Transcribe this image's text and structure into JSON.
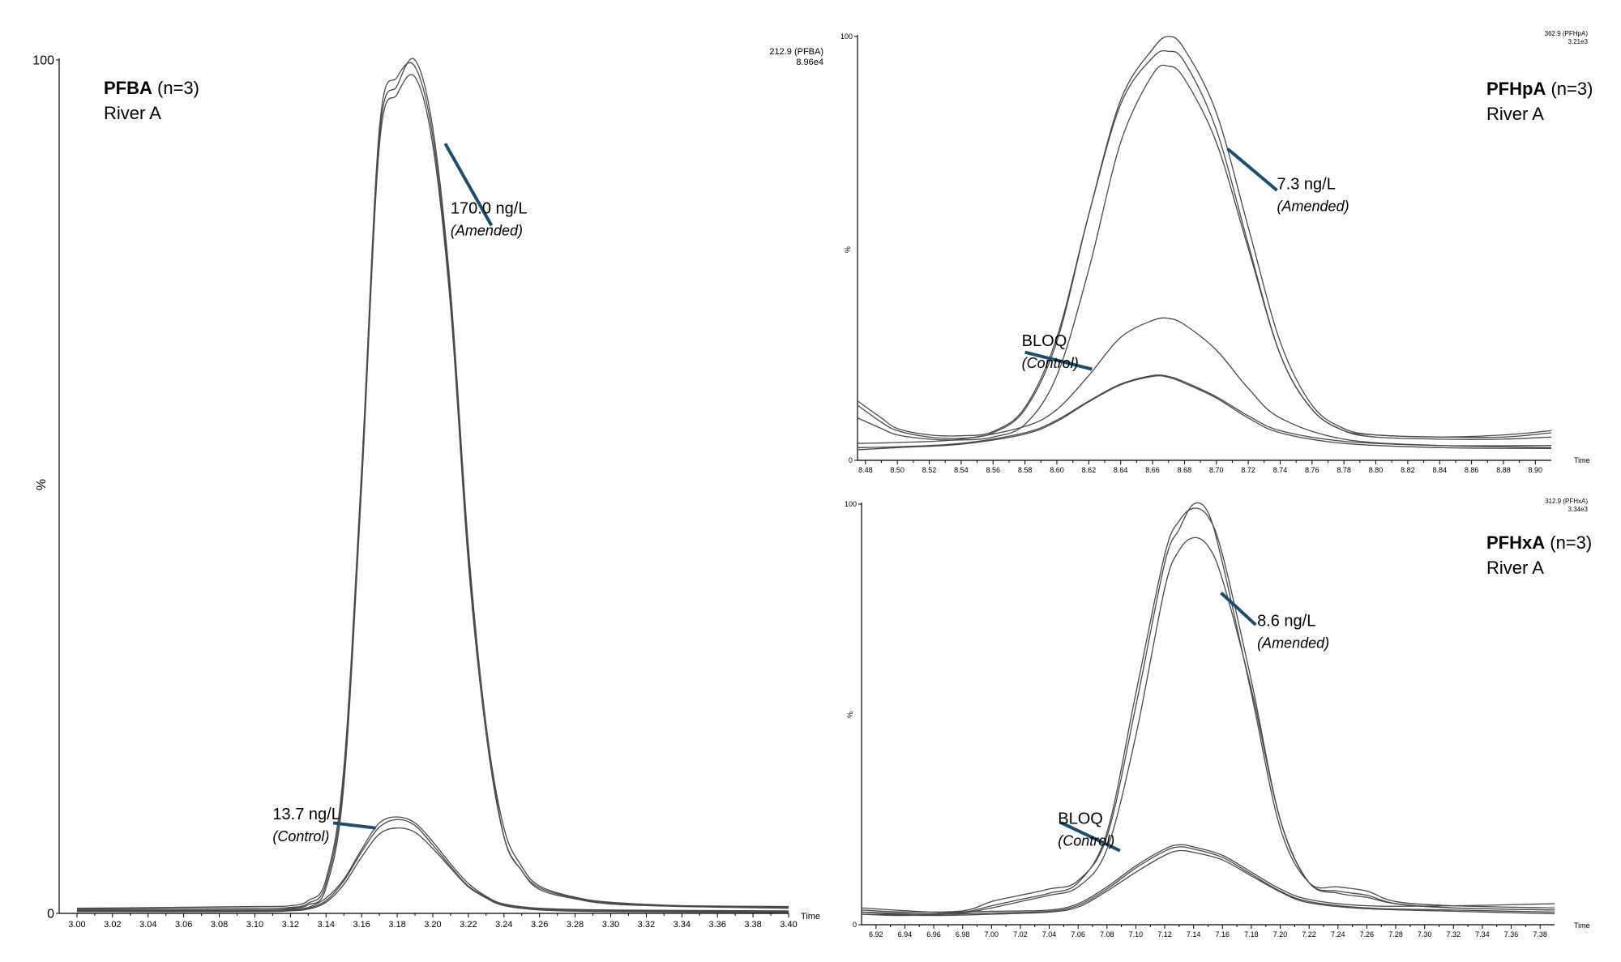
{
  "chart_data": [
    {
      "type": "line",
      "id": "pfba",
      "title": {
        "compound": "PFBA",
        "n": " (n=3)",
        "site": "River A"
      },
      "trace_info": {
        "mass": "212.9 (PFBA)",
        "intensity": "8.96e4"
      },
      "xlabel": "Time",
      "ylabel": "%",
      "xlim": [
        2.99,
        3.4
      ],
      "ylim": [
        0,
        100
      ],
      "xticks": [
        "3.00",
        "3.02",
        "3.04",
        "3.06",
        "3.08",
        "3.10",
        "3.12",
        "3.14",
        "3.16",
        "3.18",
        "3.20",
        "3.22",
        "3.24",
        "3.26",
        "3.28",
        "3.30",
        "3.32",
        "3.34",
        "3.36",
        "3.38",
        "3.40"
      ],
      "yticks": [
        "100",
        "0"
      ],
      "annotations": [
        {
          "value": "170.0 ng/L",
          "group": "(Amended)",
          "text_at": [
            3.21,
            82
          ],
          "line": [
            [
              3.207,
              90.2
            ],
            [
              3.233,
              80.6
            ]
          ]
        },
        {
          "value": "13.7 ng/L",
          "group": "(Control)",
          "text_at": [
            3.11,
            11
          ],
          "line": [
            [
              3.144,
              10.6
            ],
            [
              3.168,
              10.0
            ]
          ]
        }
      ],
      "series": [
        {
          "group": "Amended",
          "x": [
            3.0,
            3.1,
            3.12,
            3.13,
            3.14,
            3.15,
            3.16,
            3.17,
            3.18,
            3.19,
            3.2,
            3.21,
            3.22,
            3.23,
            3.24,
            3.25,
            3.26,
            3.28,
            3.3,
            3.34,
            3.4
          ],
          "y": [
            0.6,
            0.8,
            0.9,
            1.5,
            4,
            17,
            52,
            92,
            98,
            99.2,
            91,
            72,
            42,
            22,
            9,
            5,
            3,
            1.8,
            1.2,
            0.9,
            0.8
          ]
        },
        {
          "group": "Amended",
          "x": [
            3.0,
            3.1,
            3.12,
            3.13,
            3.14,
            3.15,
            3.16,
            3.17,
            3.18,
            3.19,
            3.2,
            3.21,
            3.22,
            3.23,
            3.24,
            3.25,
            3.26,
            3.28,
            3.3,
            3.34,
            3.4
          ],
          "y": [
            0.5,
            0.6,
            0.7,
            1.2,
            3.5,
            16,
            51,
            91,
            97,
            100,
            92,
            73,
            43,
            22,
            10,
            5.5,
            3.2,
            1.9,
            1.3,
            0.9,
            0.7
          ]
        },
        {
          "group": "Amended",
          "x": [
            3.0,
            3.1,
            3.12,
            3.13,
            3.14,
            3.15,
            3.16,
            3.17,
            3.18,
            3.19,
            3.2,
            3.21,
            3.22,
            3.23,
            3.24,
            3.25,
            3.26,
            3.28,
            3.3,
            3.34,
            3.4
          ],
          "y": [
            0.3,
            0.4,
            0.6,
            1.0,
            3.0,
            15,
            50,
            90,
            96,
            98,
            90,
            71,
            41,
            21,
            9,
            5,
            2.8,
            1.7,
            1.1,
            0.8,
            0.6
          ]
        },
        {
          "group": "Control",
          "x": [
            3.0,
            3.1,
            3.12,
            3.13,
            3.14,
            3.15,
            3.16,
            3.17,
            3.18,
            3.19,
            3.2,
            3.21,
            3.22,
            3.23,
            3.24,
            3.26,
            3.3,
            3.4
          ],
          "y": [
            0.4,
            0.4,
            0.5,
            0.7,
            1.8,
            4,
            7.5,
            10.6,
            11.3,
            10.6,
            8.4,
            5.8,
            3.5,
            2.0,
            1.1,
            0.6,
            0.4,
            0.3
          ]
        },
        {
          "group": "Control",
          "x": [
            3.0,
            3.1,
            3.12,
            3.13,
            3.14,
            3.15,
            3.16,
            3.17,
            3.18,
            3.19,
            3.2,
            3.21,
            3.22,
            3.23,
            3.24,
            3.26,
            3.3,
            3.4
          ],
          "y": [
            0.3,
            0.3,
            0.4,
            0.6,
            1.5,
            3.8,
            7.2,
            10.1,
            11.0,
            10.3,
            8.0,
            5.5,
            3.2,
            1.9,
            1.0,
            0.5,
            0.3,
            0.2
          ]
        },
        {
          "group": "Control",
          "x": [
            3.0,
            3.1,
            3.12,
            3.13,
            3.14,
            3.15,
            3.16,
            3.17,
            3.18,
            3.19,
            3.2,
            3.21,
            3.22,
            3.23,
            3.24,
            3.26,
            3.3,
            3.4
          ],
          "y": [
            0.2,
            0.2,
            0.3,
            0.5,
            1.3,
            3.4,
            6.6,
            9.3,
            10.0,
            9.5,
            7.6,
            5.3,
            3.1,
            1.8,
            0.9,
            0.4,
            0.2,
            0.1
          ]
        }
      ]
    },
    {
      "type": "line",
      "id": "pfhpa",
      "title": {
        "compound": "PFHpA",
        "n": " (n=3)",
        "site": "River A"
      },
      "trace_info": {
        "mass": "362.9 (PFHpA)",
        "intensity": "3.21e3"
      },
      "xlabel": "Time",
      "ylabel": "%",
      "xlim": [
        8.475,
        8.91
      ],
      "ylim": [
        0,
        100
      ],
      "xticks": [
        "8.48",
        "8.50",
        "8.52",
        "8.54",
        "8.56",
        "8.58",
        "8.60",
        "8.62",
        "8.64",
        "8.66",
        "8.68",
        "8.70",
        "8.72",
        "8.74",
        "8.76",
        "8.78",
        "8.80",
        "8.82",
        "8.84",
        "8.86",
        "8.88",
        "8.90"
      ],
      "yticks": [
        "100",
        "%",
        "0"
      ],
      "annotations": [
        {
          "value": "7.3 ng/L",
          "group": "(Amended)",
          "text_at": [
            8.738,
            64
          ],
          "line": [
            [
              8.707,
              73.5
            ],
            [
              8.738,
              63.7
            ]
          ]
        },
        {
          "value": "BLOQ",
          "group": "(Control)",
          "text_at": [
            8.578,
            27
          ],
          "line": [
            [
              8.58,
              25.5
            ],
            [
              8.622,
              21.5
            ]
          ]
        }
      ],
      "series": [
        {
          "group": "Amended",
          "x": [
            8.475,
            8.49,
            8.5,
            8.52,
            8.54,
            8.56,
            8.58,
            8.6,
            8.62,
            8.64,
            8.66,
            8.67,
            8.68,
            8.7,
            8.72,
            8.74,
            8.76,
            8.78,
            8.8,
            8.84,
            8.88,
            8.91
          ],
          "y": [
            13,
            9,
            7,
            5.5,
            5.2,
            6.5,
            12,
            28,
            58,
            85,
            97,
            100,
            97,
            82,
            55,
            28,
            13,
            7.5,
            6,
            5.5,
            5.5,
            6.5
          ]
        },
        {
          "group": "Amended",
          "x": [
            8.475,
            8.49,
            8.5,
            8.52,
            8.54,
            8.56,
            8.58,
            8.6,
            8.62,
            8.64,
            8.66,
            8.67,
            8.68,
            8.7,
            8.72,
            8.74,
            8.76,
            8.78,
            8.8,
            8.84,
            8.88,
            8.91
          ],
          "y": [
            14,
            10,
            7.5,
            6,
            5.8,
            6.8,
            12.5,
            29,
            58,
            84,
            95,
            96.5,
            94,
            78,
            51,
            25,
            12,
            7,
            6,
            5.5,
            6,
            7
          ]
        },
        {
          "group": "Amended",
          "x": [
            8.475,
            8.49,
            8.5,
            8.52,
            8.54,
            8.56,
            8.58,
            8.6,
            8.62,
            8.64,
            8.66,
            8.67,
            8.68,
            8.7,
            8.72,
            8.74,
            8.76,
            8.78,
            8.8,
            8.84,
            8.88,
            8.91
          ],
          "y": [
            10,
            7.5,
            6,
            5,
            4.8,
            5.5,
            8.5,
            20,
            45,
            75,
            91,
            93,
            90,
            75,
            50,
            25,
            12,
            7,
            5.5,
            5,
            5,
            5.5
          ]
        },
        {
          "group": "Control",
          "x": [
            8.475,
            8.5,
            8.54,
            8.58,
            8.6,
            8.62,
            8.64,
            8.66,
            8.67,
            8.68,
            8.7,
            8.72,
            8.74,
            8.78,
            8.84,
            8.91
          ],
          "y": [
            4,
            4.2,
            5,
            8,
            12,
            20,
            29,
            33,
            33.5,
            32,
            26,
            17,
            10,
            5,
            3.5,
            3
          ]
        },
        {
          "group": "Control",
          "x": [
            8.475,
            8.5,
            8.54,
            8.58,
            8.6,
            8.62,
            8.64,
            8.66,
            8.67,
            8.68,
            8.7,
            8.72,
            8.74,
            8.78,
            8.84,
            8.91
          ],
          "y": [
            3,
            3.2,
            4,
            6.5,
            9.5,
            14,
            18,
            20,
            19.8,
            18.5,
            15,
            10.5,
            7,
            4.5,
            3.5,
            3.5
          ]
        },
        {
          "group": "Control",
          "x": [
            8.475,
            8.5,
            8.54,
            8.58,
            8.6,
            8.62,
            8.64,
            8.66,
            8.67,
            8.68,
            8.7,
            8.72,
            8.74,
            8.78,
            8.84,
            8.91
          ],
          "y": [
            2.5,
            3,
            3.8,
            6.2,
            9.2,
            13.8,
            17.8,
            19.8,
            19.6,
            18.2,
            14.7,
            10,
            6.5,
            4,
            3,
            2.8
          ]
        }
      ]
    },
    {
      "type": "line",
      "id": "pfhxa",
      "title": {
        "compound": "PFHxA",
        "n": " (n=3)",
        "site": "River A"
      },
      "trace_info": {
        "mass": "312.9 (PFHxA)",
        "intensity": "3.34e3"
      },
      "xlabel": "Time",
      "ylabel": "%",
      "xlim": [
        6.91,
        7.39
      ],
      "ylim": [
        0,
        100
      ],
      "xticks": [
        "6.92",
        "6.94",
        "6.96",
        "6.98",
        "7.00",
        "7.02",
        "7.04",
        "7.06",
        "7.08",
        "7.10",
        "7.12",
        "7.14",
        "7.16",
        "7.18",
        "7.20",
        "7.22",
        "7.24",
        "7.26",
        "7.28",
        "7.30",
        "7.32",
        "7.34",
        "7.36",
        "7.38"
      ],
      "yticks": [
        "100",
        "%",
        "0"
      ],
      "annotations": [
        {
          "value": "8.6 ng/L",
          "group": "(Amended)",
          "text_at": [
            7.184,
            71
          ],
          "line": [
            [
              7.159,
              78.9
            ],
            [
              7.183,
              71.3
            ]
          ]
        },
        {
          "value": "BLOQ",
          "group": "(Control)",
          "text_at": [
            7.046,
            24
          ],
          "line": [
            [
              7.048,
              24.3
            ],
            [
              7.089,
              17.6
            ]
          ]
        }
      ],
      "series": [
        {
          "group": "Amended",
          "x": [
            6.91,
            6.94,
            6.98,
            7.0,
            7.02,
            7.04,
            7.06,
            7.08,
            7.1,
            7.12,
            7.13,
            7.14,
            7.15,
            7.16,
            7.18,
            7.2,
            7.22,
            7.24,
            7.26,
            7.28,
            7.32,
            7.39
          ],
          "y": [
            3,
            2.5,
            3,
            4.5,
            6,
            7.5,
            10,
            22,
            55,
            88,
            96,
            99,
            97,
            88,
            58,
            25,
            10,
            8,
            7,
            5,
            4,
            3.5
          ]
        },
        {
          "group": "Amended",
          "x": [
            6.91,
            6.94,
            6.98,
            7.0,
            7.02,
            7.04,
            7.06,
            7.08,
            7.1,
            7.12,
            7.13,
            7.14,
            7.15,
            7.16,
            7.18,
            7.2,
            7.22,
            7.24,
            7.26,
            7.28,
            7.32,
            7.39
          ],
          "y": [
            3.5,
            3,
            3.3,
            5.5,
            7,
            8.5,
            10.5,
            21,
            52,
            86,
            94,
            100,
            98,
            86,
            55,
            23,
            10,
            9,
            8,
            5.5,
            4.5,
            4
          ]
        },
        {
          "group": "Amended",
          "x": [
            6.91,
            6.94,
            6.98,
            7.0,
            7.02,
            7.04,
            7.06,
            7.08,
            7.1,
            7.12,
            7.13,
            7.14,
            7.15,
            7.16,
            7.18,
            7.2,
            7.22,
            7.24,
            7.26,
            7.28,
            7.32,
            7.39
          ],
          "y": [
            2.5,
            2.2,
            2.8,
            4,
            5.5,
            7,
            9,
            18,
            45,
            80,
            89,
            92,
            90,
            82,
            56,
            25,
            10,
            7.5,
            6.5,
            5,
            4,
            3.5
          ]
        },
        {
          "group": "Control",
          "x": [
            6.91,
            6.96,
            7.0,
            7.04,
            7.06,
            7.08,
            7.1,
            7.12,
            7.13,
            7.14,
            7.16,
            7.18,
            7.2,
            7.22,
            7.26,
            7.32,
            7.39
          ],
          "y": [
            4,
            3,
            3.2,
            3.5,
            5,
            9,
            14,
            18,
            19,
            18.5,
            16.5,
            12.5,
            8.5,
            6,
            4.5,
            4.5,
            5
          ]
        },
        {
          "group": "Control",
          "x": [
            6.91,
            6.96,
            7.0,
            7.04,
            7.06,
            7.08,
            7.1,
            7.12,
            7.13,
            7.14,
            7.16,
            7.18,
            7.2,
            7.22,
            7.26,
            7.32,
            7.39
          ],
          "y": [
            3,
            2.5,
            2.8,
            3.2,
            4.6,
            8.5,
            13.5,
            17.5,
            18.5,
            18,
            16,
            12,
            8,
            5.5,
            4,
            3.5,
            3
          ]
        },
        {
          "group": "Control",
          "x": [
            6.91,
            6.96,
            7.0,
            7.04,
            7.06,
            7.08,
            7.1,
            7.12,
            7.13,
            7.14,
            7.16,
            7.18,
            7.2,
            7.22,
            7.26,
            7.32,
            7.39
          ],
          "y": [
            2.5,
            2.2,
            2.5,
            3,
            4.2,
            8,
            12.5,
            16.5,
            17.6,
            17.2,
            15.4,
            11.6,
            7.8,
            5.2,
            3.8,
            3.2,
            2.6
          ]
        }
      ]
    }
  ]
}
